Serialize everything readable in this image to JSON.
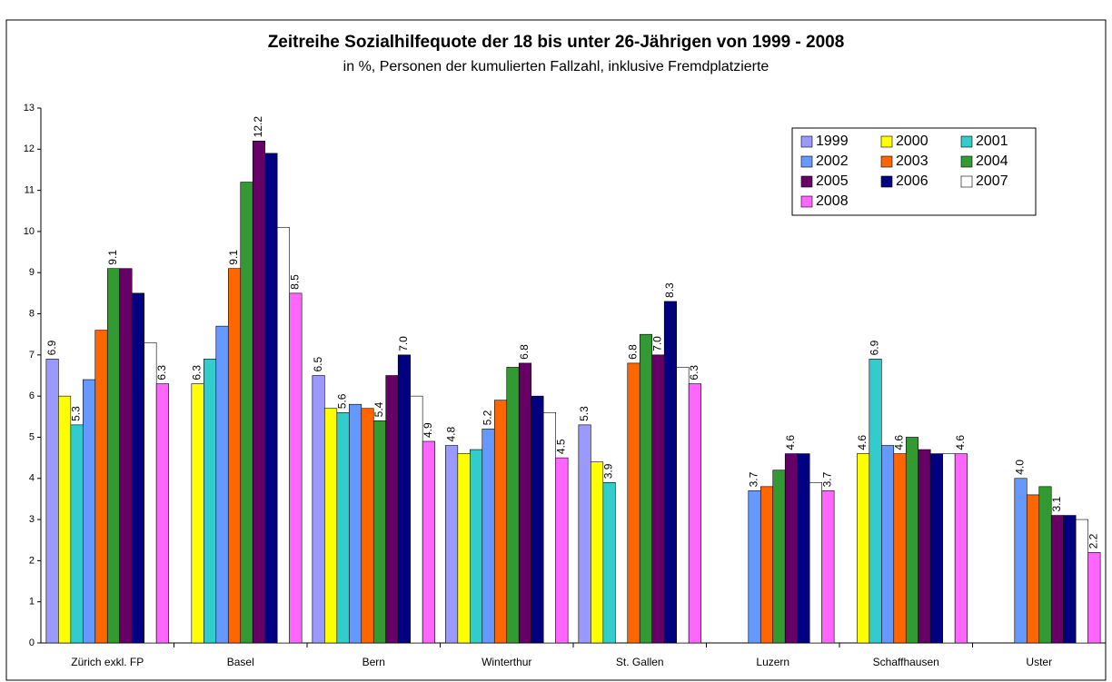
{
  "chart_data": {
    "type": "bar",
    "title": "Zeitreihe Sozialhilfequote der 18 bis unter 26-Jährigen von 1999 - 2008",
    "subtitle": "in %, Personen der kumulierten Fallzahl, inklusive Fremdplatzierte",
    "categories": [
      "Zürich exkl. FP",
      "Basel",
      "Bern",
      "Winterthur",
      "St. Gallen",
      "Luzern",
      "Schaffhausen",
      "Uster"
    ],
    "ylim": [
      0,
      13
    ],
    "yticks": [
      0,
      1,
      2,
      3,
      4,
      5,
      6,
      7,
      8,
      9,
      10,
      11,
      12,
      13
    ],
    "grid": false,
    "legend": "upper right",
    "series": [
      {
        "name": "1999",
        "color": "#9999ff",
        "values": [
          6.9,
          null,
          6.5,
          4.8,
          5.3,
          null,
          null,
          null
        ],
        "value_labels": [
          "6.9",
          null,
          "6.5",
          "4.8",
          "5.3",
          null,
          null,
          null
        ]
      },
      {
        "name": "2000",
        "color": "#ffff00",
        "values": [
          6.0,
          6.3,
          5.7,
          4.6,
          4.4,
          null,
          4.6,
          null
        ],
        "value_labels": [
          null,
          "6.3",
          null,
          null,
          null,
          null,
          "4.6",
          null
        ]
      },
      {
        "name": "2001",
        "color": "#33cccc",
        "values": [
          5.3,
          6.9,
          5.6,
          4.7,
          3.9,
          null,
          6.9,
          null
        ],
        "value_labels": [
          "5.3",
          null,
          "5.6",
          null,
          "3.9",
          null,
          "6.9",
          null
        ]
      },
      {
        "name": "2002",
        "color": "#6699ff",
        "values": [
          6.4,
          7.7,
          5.8,
          5.2,
          null,
          3.7,
          4.8,
          4.0
        ],
        "value_labels": [
          null,
          null,
          null,
          "5.2",
          null,
          "3.7",
          null,
          "4.0"
        ]
      },
      {
        "name": "2003",
        "color": "#ff6600",
        "values": [
          7.6,
          9.1,
          5.7,
          5.9,
          6.8,
          3.8,
          4.6,
          3.6
        ],
        "value_labels": [
          null,
          "9.1",
          null,
          null,
          "6.8",
          null,
          "4.6",
          null
        ]
      },
      {
        "name": "2004",
        "color": "#339933",
        "values": [
          9.1,
          11.2,
          5.4,
          6.7,
          7.5,
          4.2,
          5.0,
          3.8
        ],
        "value_labels": [
          "9.1",
          null,
          "5.4",
          null,
          null,
          null,
          null,
          null
        ]
      },
      {
        "name": "2005",
        "color": "#660066",
        "values": [
          9.1,
          12.2,
          6.5,
          6.8,
          7.0,
          4.6,
          4.7,
          3.1
        ],
        "value_labels": [
          null,
          "12.2",
          null,
          "6.8",
          "7.0",
          "4.6",
          null,
          "3.1"
        ]
      },
      {
        "name": "2006",
        "color": "#000080",
        "values": [
          8.5,
          11.9,
          7.0,
          6.0,
          8.3,
          4.6,
          4.6,
          3.1
        ],
        "value_labels": [
          null,
          null,
          "7.0",
          null,
          "8.3",
          null,
          null,
          null
        ]
      },
      {
        "name": "2007",
        "color": "#ffffff",
        "values": [
          7.3,
          10.1,
          6.0,
          5.6,
          6.7,
          3.9,
          4.6,
          3.0
        ],
        "value_labels": [
          null,
          null,
          null,
          null,
          null,
          null,
          null,
          null
        ]
      },
      {
        "name": "2008",
        "color": "#ff66ff",
        "values": [
          6.3,
          8.5,
          4.9,
          4.5,
          6.3,
          3.7,
          4.6,
          2.2
        ],
        "value_labels": [
          "6.3",
          "8.5",
          "4.9",
          "4.5",
          "6.3",
          "3.7",
          "4.6",
          "2.2"
        ]
      }
    ]
  }
}
